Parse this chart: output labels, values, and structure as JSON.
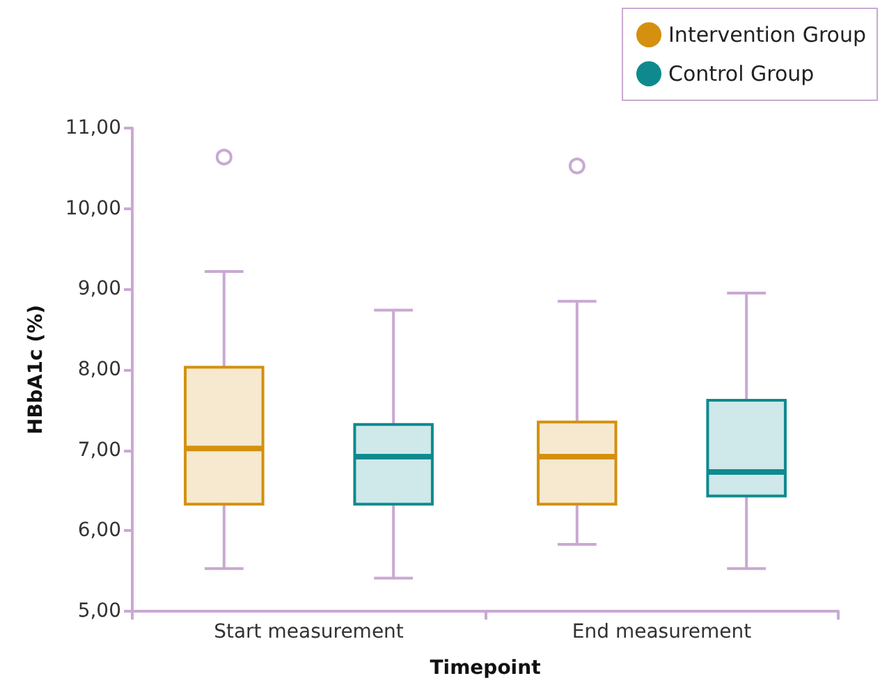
{
  "chart_data": {
    "type": "box",
    "xlabel": "Timepoint",
    "ylabel": "HBbA1c (%)",
    "categories": [
      "Start measurement",
      "End measurement"
    ],
    "series": [
      {
        "name": "Intervention Group",
        "color": "#d4900e",
        "boxes": [
          {
            "low": 5.53,
            "q1": 6.33,
            "median": 7.02,
            "q3": 8.03,
            "high": 9.22,
            "outliers": [
              10.64
            ]
          },
          {
            "low": 5.83,
            "q1": 6.33,
            "median": 6.92,
            "q3": 7.35,
            "high": 8.85,
            "outliers": [
              10.53
            ]
          }
        ]
      },
      {
        "name": "Control Group",
        "color": "#0e8a8f",
        "boxes": [
          {
            "low": 5.41,
            "q1": 6.33,
            "median": 6.92,
            "q3": 7.32,
            "high": 8.74
          },
          {
            "low": 5.53,
            "q1": 6.43,
            "median": 6.73,
            "q3": 7.62,
            "high": 8.95
          }
        ]
      }
    ],
    "ylim": [
      5,
      11
    ],
    "yticks": [
      {
        "value": 5,
        "label": "5,00"
      },
      {
        "value": 6,
        "label": "6,00"
      },
      {
        "value": 7,
        "label": "7,00"
      },
      {
        "value": 8,
        "label": "8,00"
      },
      {
        "value": 9,
        "label": "9,00"
      },
      {
        "value": 10,
        "label": "10,00"
      },
      {
        "value": 11,
        "label": "11,00"
      }
    ],
    "grid": false,
    "legend": "top right"
  }
}
